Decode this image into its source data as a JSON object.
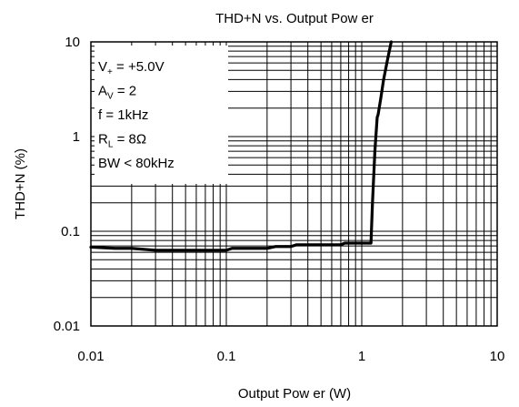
{
  "chart_data": {
    "type": "line",
    "title": "THD+N vs. Output Pow er",
    "xlabel": "Output Pow er (W)",
    "ylabel": "THD+N (%)",
    "x_scale": "log",
    "y_scale": "log",
    "xlim": [
      0.01,
      10
    ],
    "ylim": [
      0.01,
      10
    ],
    "x_ticks": [
      "0.01",
      "0.1",
      "1",
      "10"
    ],
    "y_ticks": [
      "0.01",
      "0.1",
      "1",
      "10"
    ],
    "grid": true,
    "legend": "none",
    "series": [
      {
        "x": [
          0.01,
          0.015,
          0.02,
          0.03,
          0.05,
          0.1,
          0.11,
          0.15,
          0.2,
          0.23,
          0.3,
          0.33,
          0.5,
          0.7,
          0.75,
          1.0,
          1.17,
          1.2,
          1.25,
          1.3,
          1.32,
          1.38,
          1.45,
          1.55,
          1.65
        ],
        "y": [
          0.068,
          0.066,
          0.066,
          0.063,
          0.063,
          0.063,
          0.066,
          0.066,
          0.066,
          0.069,
          0.069,
          0.072,
          0.072,
          0.072,
          0.075,
          0.075,
          0.075,
          0.2,
          0.7,
          1.6,
          1.7,
          2.5,
          4.0,
          6.5,
          10.0
        ]
      }
    ],
    "annotations": [
      {
        "main": "V",
        "sub": "+",
        "rest": " = +5.0V"
      },
      {
        "main": "A",
        "sub": "V",
        "rest": " = 2"
      },
      {
        "main": "f = 1kHz",
        "sub": "",
        "rest": ""
      },
      {
        "main": "R",
        "sub": "L",
        "rest": " = 8Ω"
      },
      {
        "main": "BW < 80kHz",
        "sub": "",
        "rest": ""
      }
    ],
    "colors": {
      "line": "#000000",
      "grid": "#000000",
      "background": "#ffffff"
    }
  }
}
